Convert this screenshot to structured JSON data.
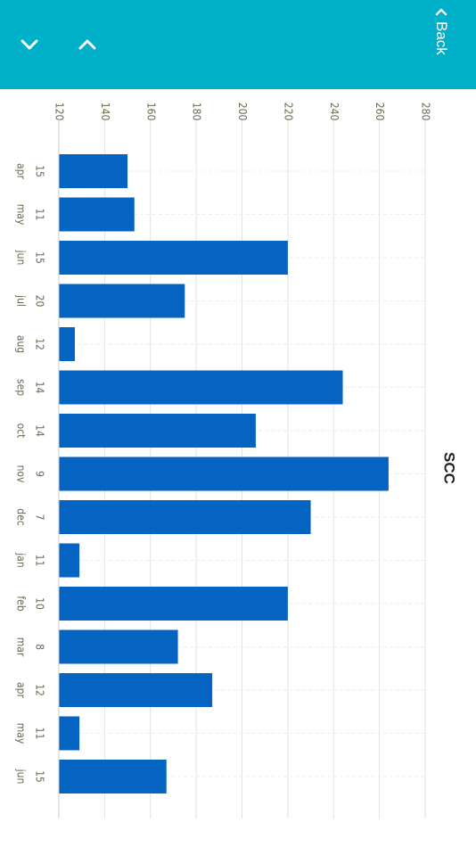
{
  "header": {
    "back_label": "Back",
    "icons": {
      "down": "chevron-down-icon",
      "up": "chevron-up-icon",
      "back": "chevron-left-icon"
    }
  },
  "colors": {
    "header": "#00b0c8",
    "bar": "#0563c1",
    "grid": "#e2e2e2"
  },
  "chart_data": {
    "type": "bar",
    "orientation": "horizontal",
    "title": "SCC",
    "categories": [
      "apr",
      "may",
      "jun",
      "jul",
      "aug",
      "sep",
      "oct",
      "nov",
      "dec",
      "jan",
      "feb",
      "mar",
      "apr",
      "may",
      "jun"
    ],
    "category_sublabels": [
      "15",
      "11",
      "15",
      "20",
      "12",
      "14",
      "14",
      "9",
      "7",
      "11",
      "10",
      "8",
      "12",
      "11",
      "15"
    ],
    "values": [
      150,
      153,
      220,
      175,
      127,
      244,
      206,
      264,
      230,
      129,
      220,
      172,
      187,
      129,
      167
    ],
    "ylim": [
      120,
      280
    ],
    "ticks": [
      120,
      140,
      160,
      180,
      200,
      220,
      240,
      260,
      280
    ],
    "xlabel": "",
    "ylabel": "",
    "grid": true,
    "legend": "none"
  }
}
